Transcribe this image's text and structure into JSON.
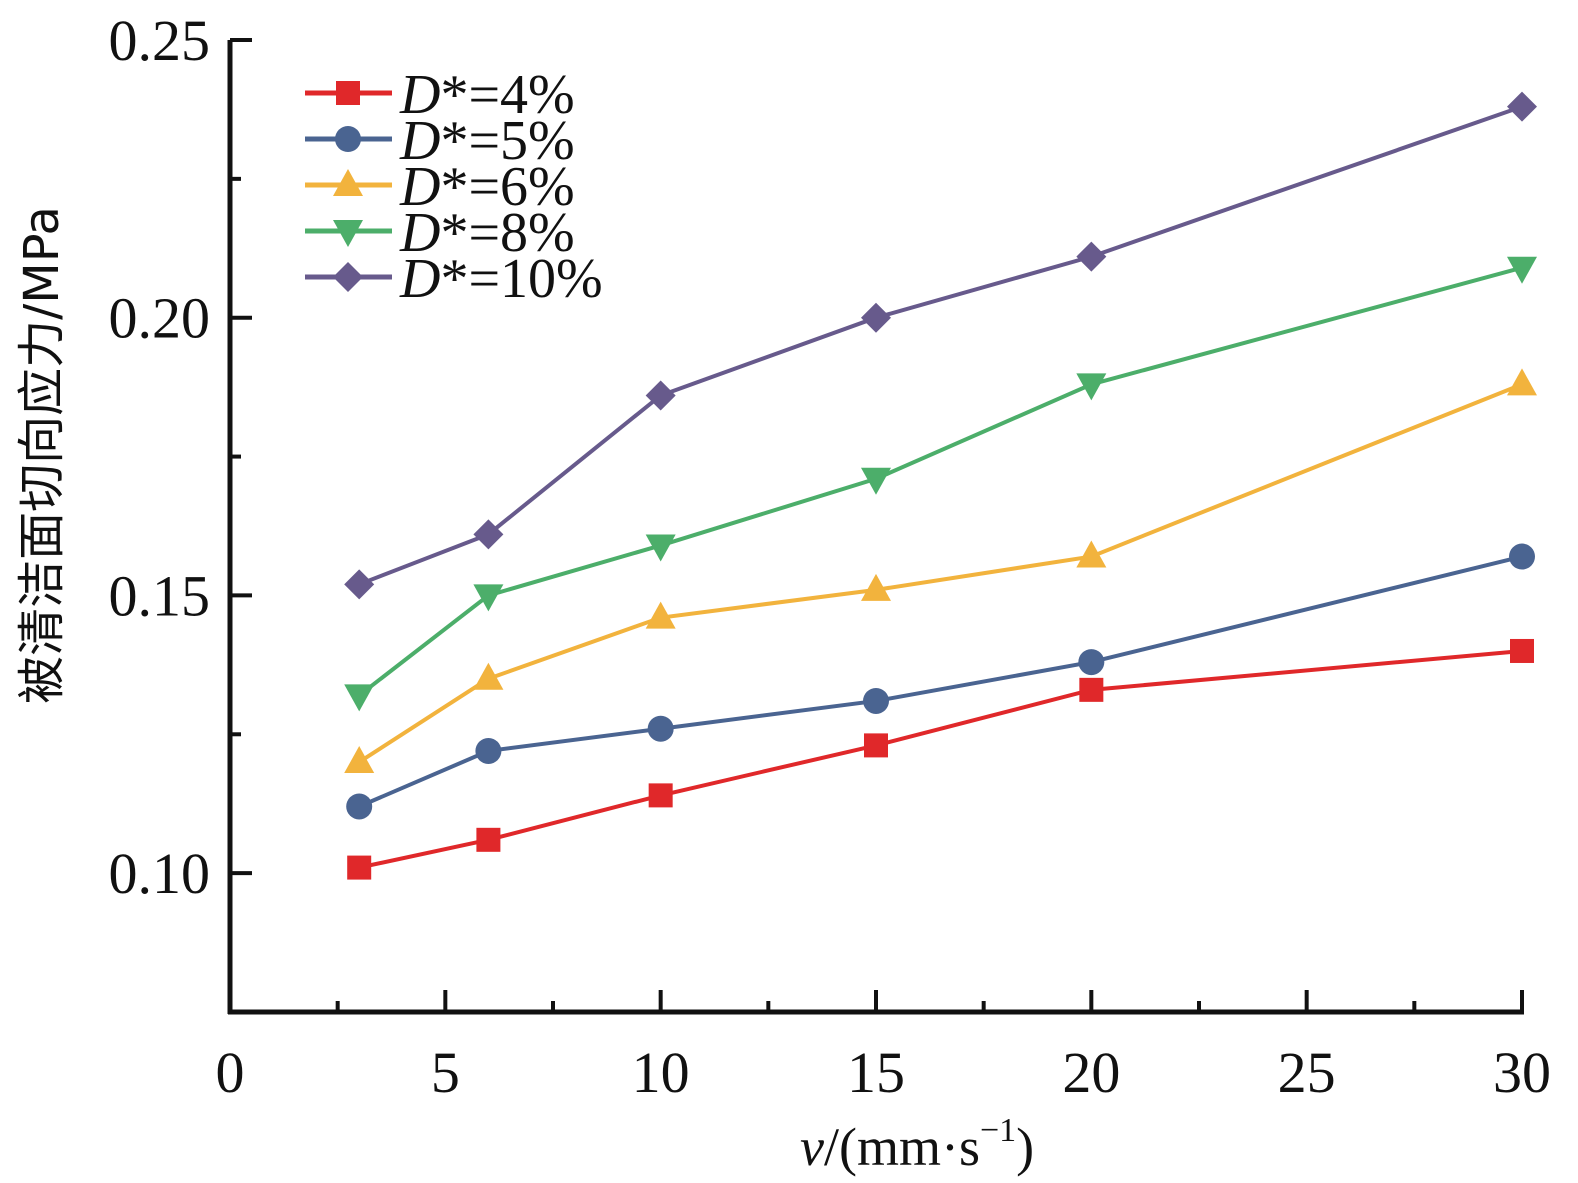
{
  "chart_data": {
    "type": "line",
    "title": "",
    "xlabel": {
      "var": "v",
      "unit": "/(mm·s",
      "sup": "−1",
      "close": ")"
    },
    "ylabel": "被清洁面切向应力/MPa",
    "xlim": [
      0,
      30
    ],
    "ylim": [
      0.075,
      0.25
    ],
    "xticks": [
      0,
      5,
      10,
      15,
      20,
      25,
      30
    ],
    "xtick_labels": [
      "0",
      "5",
      "10",
      "15",
      "20",
      "25",
      "30"
    ],
    "x_minor_ticks": [
      2.5,
      7.5,
      12.5,
      17.5,
      22.5,
      27.5
    ],
    "yticks": [
      0.1,
      0.15,
      0.2,
      0.25
    ],
    "ytick_labels": [
      "0.10",
      "0.15",
      "0.20",
      "0.25"
    ],
    "y_minor_ticks": [
      0.125,
      0.175,
      0.225
    ],
    "grid": false,
    "legend_position": "top-left",
    "x": [
      3,
      6,
      10,
      15,
      20,
      30
    ],
    "series": [
      {
        "name": "D*=4%",
        "label_italic": "D",
        "label_rest": "*=4%",
        "marker": "square",
        "color": "#e0282a",
        "values": [
          0.101,
          0.106,
          0.114,
          0.123,
          0.133,
          0.14
        ]
      },
      {
        "name": "D*=5%",
        "label_italic": "D",
        "label_rest": "*=5%",
        "marker": "circle",
        "color": "#4a6491",
        "values": [
          0.112,
          0.122,
          0.126,
          0.131,
          0.138,
          0.157
        ]
      },
      {
        "name": "D*=6%",
        "label_italic": "D",
        "label_rest": "*=6%",
        "marker": "triangle-up",
        "color": "#f2b33d",
        "values": [
          0.12,
          0.135,
          0.146,
          0.151,
          0.157,
          0.188
        ]
      },
      {
        "name": "D*=8%",
        "label_italic": "D",
        "label_rest": "*=8%",
        "marker": "triangle-down",
        "color": "#4cae6a",
        "values": [
          0.132,
          0.15,
          0.159,
          0.171,
          0.188,
          0.209
        ]
      },
      {
        "name": "D*=10%",
        "label_italic": "D",
        "label_rest": "*=10%",
        "marker": "diamond",
        "color": "#675a8c",
        "values": [
          0.152,
          0.161,
          0.186,
          0.2,
          0.211,
          0.238
        ]
      }
    ]
  }
}
